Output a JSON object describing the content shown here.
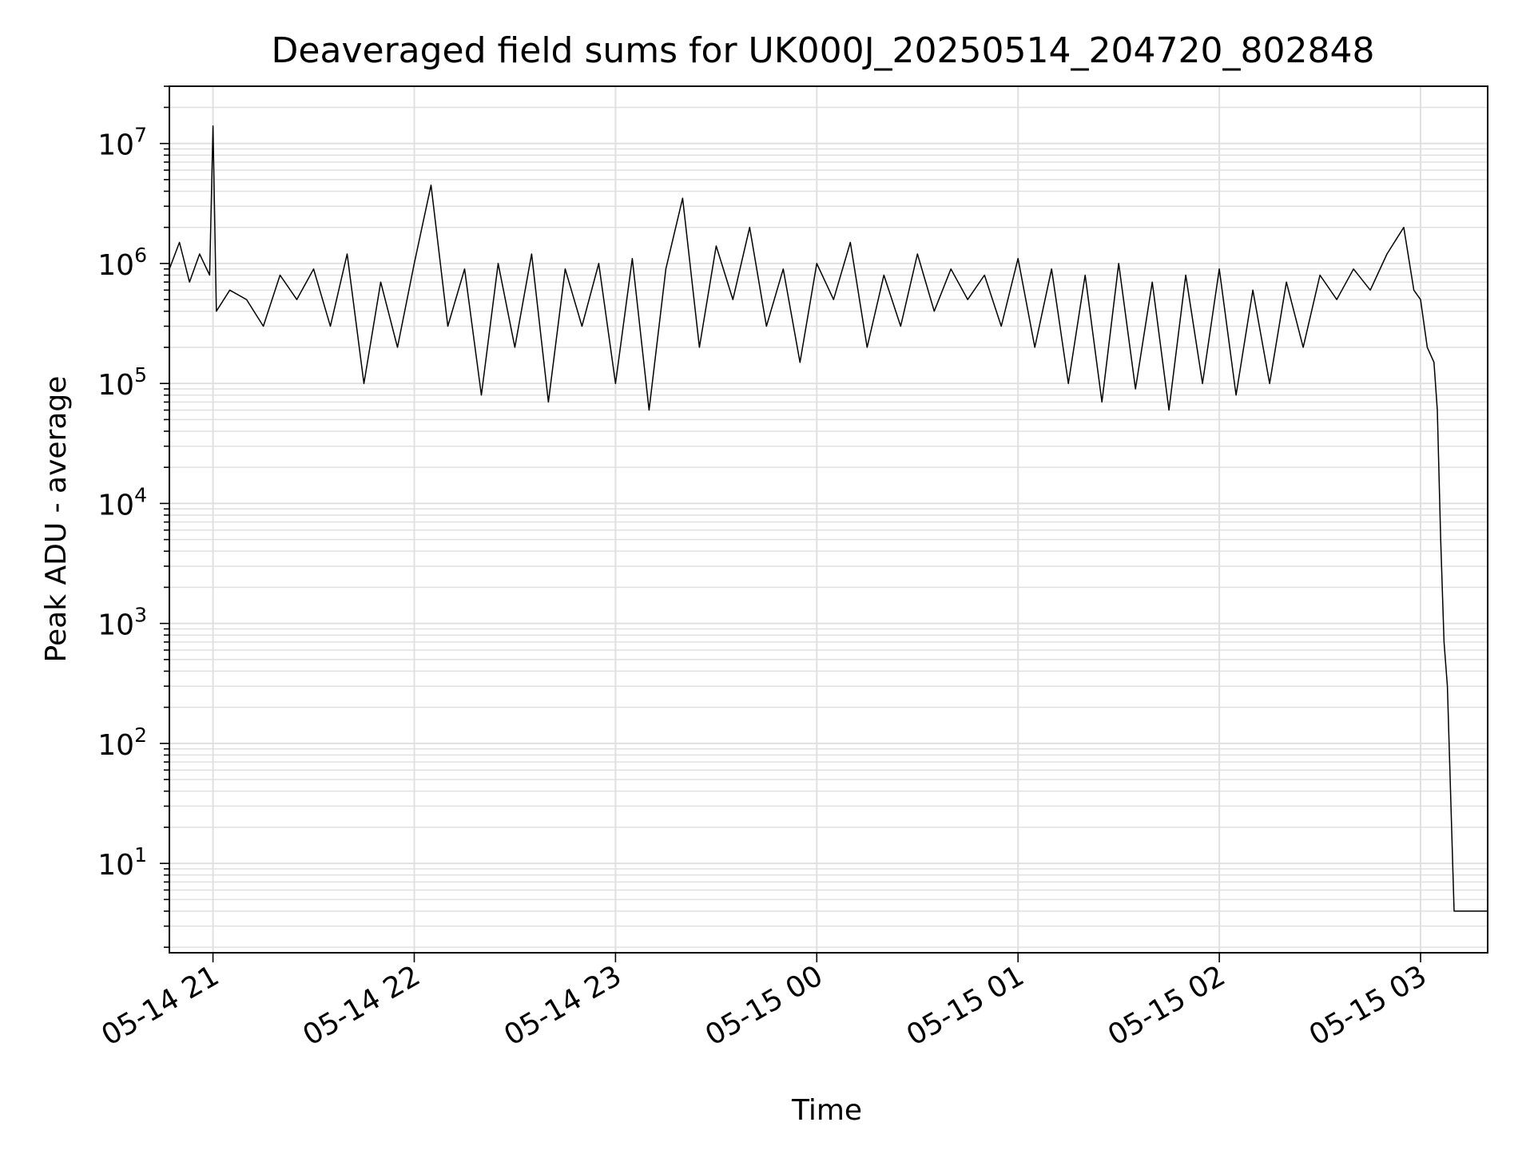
{
  "chart_data": {
    "type": "line",
    "title": "Deaveraged field sums for UK000J_20250514_204720_802848",
    "xlabel": "Time",
    "ylabel": "Peak ADU - average",
    "yscale": "log",
    "ylim": [
      1.8,
      30000000
    ],
    "xlim": [
      "05-14 20:47",
      "05-15 03:20"
    ],
    "grid": true,
    "line_color": "#000000",
    "grid_color": "#e0e0e0",
    "x_ticks": [
      {
        "label": "05-14 21",
        "time": "05-14 21:00"
      },
      {
        "label": "05-14 22",
        "time": "05-14 22:00"
      },
      {
        "label": "05-14 23",
        "time": "05-14 23:00"
      },
      {
        "label": "05-15 00",
        "time": "05-15 00:00"
      },
      {
        "label": "05-15 01",
        "time": "05-15 01:00"
      },
      {
        "label": "05-15 02",
        "time": "05-15 02:00"
      },
      {
        "label": "05-15 03",
        "time": "05-15 03:00"
      }
    ],
    "y_ticks": [
      {
        "value": 10,
        "base": "10",
        "exp": "1"
      },
      {
        "value": 100,
        "base": "10",
        "exp": "2"
      },
      {
        "value": 1000,
        "base": "10",
        "exp": "3"
      },
      {
        "value": 10000,
        "base": "10",
        "exp": "4"
      },
      {
        "value": 100000,
        "base": "10",
        "exp": "5"
      },
      {
        "value": 1000000,
        "base": "10",
        "exp": "6"
      },
      {
        "value": 10000000,
        "base": "10",
        "exp": "7"
      }
    ],
    "series": [
      {
        "x": [
          "05-14 20:47",
          "05-14 20:50",
          "05-14 20:53",
          "05-14 20:56",
          "05-14 20:59",
          "05-14 21:00",
          "05-14 21:01",
          "05-14 21:05",
          "05-14 21:10",
          "05-14 21:15",
          "05-14 21:20",
          "05-14 21:25",
          "05-14 21:30",
          "05-14 21:35",
          "05-14 21:40",
          "05-14 21:45",
          "05-14 21:50",
          "05-14 21:55",
          "05-14 22:00",
          "05-14 22:05",
          "05-14 22:10",
          "05-14 22:15",
          "05-14 22:20",
          "05-14 22:25",
          "05-14 22:30",
          "05-14 22:35",
          "05-14 22:40",
          "05-14 22:45",
          "05-14 22:50",
          "05-14 22:55",
          "05-14 23:00",
          "05-14 23:05",
          "05-14 23:10",
          "05-14 23:15",
          "05-14 23:20",
          "05-14 23:25",
          "05-14 23:30",
          "05-14 23:35",
          "05-14 23:40",
          "05-14 23:45",
          "05-14 23:50",
          "05-14 23:55",
          "05-15 00:00",
          "05-15 00:05",
          "05-15 00:10",
          "05-15 00:15",
          "05-15 00:20",
          "05-15 00:25",
          "05-15 00:30",
          "05-15 00:35",
          "05-15 00:40",
          "05-15 00:45",
          "05-15 00:50",
          "05-15 00:55",
          "05-15 01:00",
          "05-15 01:05",
          "05-15 01:10",
          "05-15 01:15",
          "05-15 01:20",
          "05-15 01:25",
          "05-15 01:30",
          "05-15 01:35",
          "05-15 01:40",
          "05-15 01:45",
          "05-15 01:50",
          "05-15 01:55",
          "05-15 02:00",
          "05-15 02:05",
          "05-15 02:10",
          "05-15 02:15",
          "05-15 02:20",
          "05-15 02:25",
          "05-15 02:30",
          "05-15 02:35",
          "05-15 02:40",
          "05-15 02:45",
          "05-15 02:50",
          "05-15 02:55",
          "05-15 02:58",
          "05-15 03:00",
          "05-15 03:02",
          "05-15 03:04",
          "05-15 03:05",
          "05-15 03:06",
          "05-15 03:07",
          "05-15 03:08",
          "05-15 03:10",
          "05-15 03:15",
          "05-15 03:20"
        ],
        "y": [
          900000,
          1500000,
          700000,
          1200000,
          800000,
          14000000,
          400000,
          600000,
          500000,
          300000,
          800000,
          500000,
          900000,
          300000,
          1200000,
          100000,
          700000,
          200000,
          1000000,
          4500000,
          300000,
          900000,
          80000,
          1000000,
          200000,
          1200000,
          70000,
          900000,
          300000,
          1000000,
          100000,
          1100000,
          60000,
          900000,
          3500000,
          200000,
          1400000,
          500000,
          2000000,
          300000,
          900000,
          150000,
          1000000,
          500000,
          1500000,
          200000,
          800000,
          300000,
          1200000,
          400000,
          900000,
          500000,
          800000,
          300000,
          1100000,
          200000,
          900000,
          100000,
          800000,
          70000,
          1000000,
          90000,
          700000,
          60000,
          800000,
          100000,
          900000,
          80000,
          600000,
          100000,
          700000,
          200000,
          800000,
          500000,
          900000,
          600000,
          1200000,
          2000000,
          600000,
          500000,
          200000,
          150000,
          60000,
          5000,
          700,
          300,
          4,
          4,
          4
        ]
      }
    ]
  }
}
